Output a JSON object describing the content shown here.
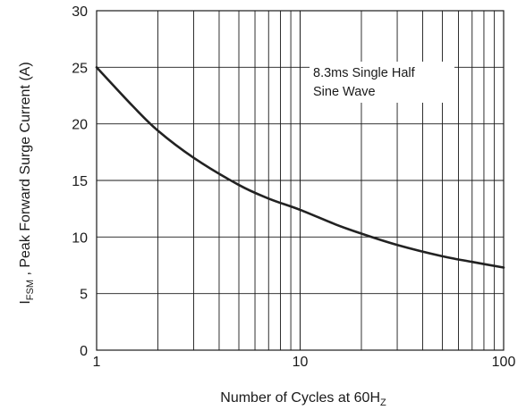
{
  "chart_data": {
    "type": "line",
    "xscale": "log",
    "xlim": [
      1,
      100
    ],
    "ylim": [
      0,
      30
    ],
    "x_ticks": [
      1,
      10,
      100
    ],
    "x_tick_labels": [
      "1",
      "10",
      "100"
    ],
    "y_ticks": [
      0,
      5,
      10,
      15,
      20,
      25,
      30
    ],
    "y_tick_labels": [
      "0",
      "5",
      "10",
      "15",
      "20",
      "25",
      "30"
    ],
    "xlabel": {
      "main": "Number of Cycles at 60H",
      "sub": "Z"
    },
    "ylabel": {
      "main": "I",
      "sub": "FSM",
      "rest": " , Peak Forward Surge Current (A)"
    },
    "grid": true,
    "annotation": [
      "8.3ms Single Half",
      "Sine Wave"
    ],
    "series": [
      {
        "x": [
          1,
          1.5,
          2,
          3,
          5,
          7,
          10,
          15,
          20,
          30,
          50,
          70,
          100
        ],
        "y": [
          25,
          21.6,
          19.4,
          17,
          14.6,
          13.4,
          12.4,
          11.1,
          10.3,
          9.3,
          8.3,
          7.8,
          7.3
        ],
        "color": "#222222"
      }
    ]
  }
}
